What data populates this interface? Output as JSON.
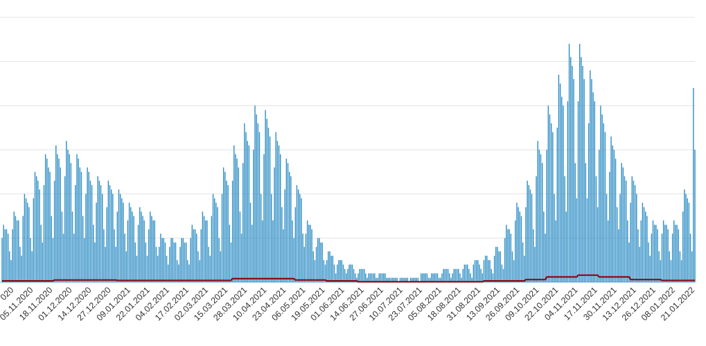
{
  "chart_data": {
    "type": "bar",
    "categories": [
      null,
      null,
      null,
      null,
      null,
      null,
      null,
      null,
      "020",
      null,
      null,
      null,
      null,
      null,
      null,
      null,
      null,
      null,
      null,
      null,
      null,
      "05.11.2020",
      null,
      null,
      null,
      null,
      null,
      null,
      null,
      null,
      null,
      null,
      null,
      null,
      "18.11.2020",
      null,
      null,
      null,
      null,
      null,
      null,
      null,
      null,
      null,
      null,
      null,
      null,
      "01.12.2020",
      null,
      null,
      null,
      null,
      null,
      null,
      null,
      null,
      null,
      null,
      null,
      null,
      "14.12.2020",
      null,
      null,
      null,
      null,
      null,
      null,
      null,
      null,
      null,
      null,
      null,
      null,
      "27.12.2020",
      null,
      null,
      null,
      null,
      null,
      null,
      null,
      null,
      null,
      null,
      null,
      null,
      "09.01.2021",
      null,
      null,
      null,
      null,
      null,
      null,
      null,
      null,
      null,
      null,
      null,
      null,
      "22.01.2021",
      null,
      null,
      null,
      null,
      null,
      null,
      null,
      null,
      null,
      null,
      null,
      null,
      "04.02.2021",
      null,
      null,
      null,
      null,
      null,
      null,
      null,
      null,
      null,
      null,
      null,
      null,
      "17.02.2021",
      null,
      null,
      null,
      null,
      null,
      null,
      null,
      null,
      null,
      null,
      null,
      null,
      "02.03.2021",
      null,
      null,
      null,
      null,
      null,
      null,
      null,
      null,
      null,
      null,
      null,
      null,
      "15.03.2021",
      null,
      null,
      null,
      null,
      null,
      null,
      null,
      null,
      null,
      null,
      null,
      null,
      "28.03.2021",
      null,
      null,
      null,
      null,
      null,
      null,
      null,
      null,
      null,
      null,
      null,
      null,
      "10.04.2021",
      null,
      null,
      null,
      null,
      null,
      null,
      null,
      null,
      null,
      null,
      null,
      null,
      "23.04.2021",
      null,
      null,
      null,
      null,
      null,
      null,
      null,
      null,
      null,
      null,
      null,
      null,
      "06.05.2021",
      null,
      null,
      null,
      null,
      null,
      null,
      null,
      null,
      null,
      null,
      null,
      null,
      "19.05.2021",
      null,
      null,
      null,
      null,
      null,
      null,
      null,
      null,
      null,
      null,
      null,
      null,
      "01.06.2021",
      null,
      null,
      null,
      null,
      null,
      null,
      null,
      null,
      null,
      null,
      null,
      null,
      "14.06.2021",
      null,
      null,
      null,
      null,
      null,
      null,
      null,
      null,
      null,
      null,
      null,
      null,
      "27.06.2021",
      null,
      null,
      null,
      null,
      null,
      null,
      null,
      null,
      null,
      null,
      null,
      null,
      "10.07.2021",
      null,
      null,
      null,
      null,
      null,
      null,
      null,
      null,
      null,
      null,
      null,
      null,
      "23.07.2021",
      null,
      null,
      null,
      null,
      null,
      null,
      null,
      null,
      null,
      null,
      null,
      null,
      "05.08.2021",
      null,
      null,
      null,
      null,
      null,
      null,
      null,
      null,
      null,
      null,
      null,
      null,
      "18.08.2021",
      null,
      null,
      null,
      null,
      null,
      null,
      null,
      null,
      null,
      null,
      null,
      null,
      "31.08.2021",
      null,
      null,
      null,
      null,
      null,
      null,
      null,
      null,
      null,
      null,
      null,
      null,
      "13.09.2021",
      null,
      null,
      null,
      null,
      null,
      null,
      null,
      null,
      null,
      null,
      null,
      null,
      "26.09.2021",
      null,
      null,
      null,
      null,
      null,
      null,
      null,
      null,
      null,
      null,
      null,
      null,
      "09.10.2021",
      null,
      null,
      null,
      null,
      null,
      null,
      null,
      null,
      null,
      null,
      null,
      null,
      "22.10.2021",
      null,
      null,
      null,
      null,
      null,
      null,
      null,
      null,
      null,
      null,
      null,
      null,
      "04.11.2021",
      null,
      null,
      null,
      null,
      null,
      null,
      null,
      null,
      null,
      null,
      null,
      null,
      "17.11.2021",
      null,
      null,
      null,
      null,
      null,
      null,
      null,
      null,
      null,
      null,
      null,
      null,
      "30.11.2021",
      null,
      null,
      null,
      null,
      null,
      null,
      null,
      null,
      null,
      null,
      null,
      null,
      "13.12.2021",
      null,
      null,
      null,
      null,
      null,
      null,
      null,
      null,
      null,
      null,
      null,
      null,
      "26.12.2021",
      null,
      null,
      null,
      null,
      null,
      null,
      null,
      null,
      null,
      null,
      null,
      null,
      "08.01.2022",
      null,
      null,
      null,
      null,
      null,
      null,
      null,
      null,
      null,
      null,
      null,
      null,
      "21.01.2022"
    ],
    "series": [
      {
        "type": "bar",
        "color": "#2b8cc4",
        "values": [
          10,
          13,
          12,
          12,
          11,
          7,
          5,
          12,
          16,
          15,
          14,
          14,
          8,
          6,
          15,
          20,
          19,
          18,
          17,
          10,
          7,
          19,
          25,
          24,
          23,
          21,
          13,
          9,
          22,
          29,
          28,
          26,
          25,
          15,
          10,
          23,
          31,
          29,
          28,
          26,
          16,
          11,
          24,
          32,
          30,
          29,
          27,
          16,
          11,
          22,
          29,
          28,
          26,
          25,
          15,
          10,
          20,
          26,
          25,
          23,
          22,
          13,
          9,
          18,
          24,
          23,
          22,
          20,
          12,
          8,
          17,
          23,
          22,
          21,
          20,
          12,
          8,
          16,
          21,
          20,
          19,
          18,
          11,
          7,
          14,
          18,
          17,
          16,
          15,
          9,
          6,
          13,
          17,
          16,
          15,
          14,
          9,
          6,
          12,
          16,
          15,
          14,
          14,
          8,
          6,
          8,
          11,
          10,
          10,
          9,
          6,
          4,
          8,
          10,
          10,
          9,
          9,
          5,
          4,
          8,
          10,
          10,
          9,
          9,
          5,
          4,
          10,
          13,
          12,
          12,
          11,
          7,
          5,
          12,
          16,
          15,
          14,
          14,
          8,
          6,
          15,
          20,
          19,
          18,
          17,
          10,
          7,
          20,
          26,
          25,
          23,
          22,
          13,
          9,
          23,
          31,
          29,
          28,
          26,
          16,
          11,
          27,
          36,
          34,
          32,
          31,
          18,
          13,
          30,
          40,
          38,
          36,
          34,
          20,
          14,
          29,
          39,
          37,
          35,
          33,
          20,
          14,
          26,
          34,
          32,
          31,
          29,
          17,
          12,
          21,
          28,
          27,
          25,
          24,
          14,
          10,
          17,
          22,
          21,
          20,
          19,
          11,
          8,
          11,
          14,
          13,
          13,
          12,
          7,
          5,
          8,
          10,
          10,
          9,
          9,
          5,
          4,
          5,
          7,
          7,
          6,
          6,
          4,
          2,
          4,
          5,
          5,
          5,
          4,
          3,
          2,
          3,
          4,
          4,
          4,
          3,
          2,
          1,
          2,
          3,
          3,
          3,
          3,
          2,
          1,
          2,
          2,
          2,
          2,
          2,
          1,
          1,
          2,
          2,
          2,
          2,
          2,
          1,
          1,
          1,
          1,
          1,
          1,
          1,
          1,
          0,
          1,
          1,
          1,
          1,
          1,
          1,
          0,
          1,
          1,
          1,
          1,
          1,
          1,
          0,
          2,
          2,
          2,
          2,
          2,
          1,
          1,
          2,
          2,
          2,
          2,
          2,
          1,
          1,
          2,
          3,
          3,
          3,
          3,
          2,
          1,
          2,
          3,
          3,
          3,
          3,
          2,
          1,
          3,
          4,
          4,
          4,
          3,
          2,
          1,
          4,
          5,
          5,
          5,
          4,
          3,
          2,
          5,
          6,
          6,
          5,
          5,
          3,
          2,
          6,
          8,
          8,
          7,
          7,
          4,
          3,
          10,
          13,
          12,
          12,
          11,
          7,
          5,
          14,
          18,
          17,
          16,
          15,
          9,
          6,
          17,
          23,
          22,
          21,
          20,
          12,
          8,
          24,
          32,
          30,
          29,
          27,
          16,
          11,
          30,
          40,
          38,
          36,
          34,
          20,
          14,
          35,
          47,
          45,
          42,
          40,
          24,
          16,
          41,
          54,
          51,
          49,
          46,
          27,
          19,
          41,
          54,
          51,
          49,
          46,
          27,
          19,
          36,
          48,
          46,
          43,
          41,
          24,
          17,
          30,
          40,
          38,
          36,
          34,
          20,
          14,
          25,
          33,
          31,
          30,
          28,
          17,
          12,
          20,
          27,
          26,
          24,
          23,
          14,
          9,
          18,
          24,
          23,
          22,
          20,
          12,
          8,
          14,
          18,
          17,
          16,
          15,
          9,
          6,
          11,
          14,
          13,
          13,
          12,
          7,
          5,
          11,
          14,
          13,
          13,
          12,
          7,
          5,
          11,
          14,
          13,
          13,
          12,
          7,
          5,
          16,
          21,
          20,
          19,
          18,
          11,
          7,
          44,
          30
        ]
      },
      {
        "type": "line",
        "color": "#8b0a14",
        "values": [
          0.3,
          0.3,
          0.3,
          0.3,
          0.3,
          0.3,
          0.3,
          0.3,
          0.3,
          0.3,
          0.3,
          0.3,
          0.3,
          0.3,
          0.3,
          0.3,
          0.3,
          0.3,
          0.3,
          0.3,
          0.3,
          0.3,
          0.3,
          0.3,
          0.3,
          0.3,
          0.3,
          0.3,
          0.3,
          0.3,
          0.3,
          0.3,
          0.3,
          0.3,
          0.3,
          0.5,
          0.5,
          0.5,
          0.5,
          0.5,
          0.5,
          0.5,
          0.5,
          0.5,
          0.5,
          0.5,
          0.5,
          0.5,
          0.5,
          0.5,
          0.5,
          0.5,
          0.5,
          0.5,
          0.5,
          0.5,
          0.5,
          0.5,
          0.5,
          0.5,
          0.5,
          0.5,
          0.5,
          0.5,
          0.5,
          0.5,
          0.5,
          0.5,
          0.5,
          0.5,
          0.5,
          0.5,
          0.5,
          0.5,
          0.5,
          0.5,
          0.5,
          0.4,
          0.4,
          0.4,
          0.4,
          0.4,
          0.4,
          0.4,
          0.4,
          0.4,
          0.4,
          0.4,
          0.4,
          0.4,
          0.4,
          0.4,
          0.4,
          0.4,
          0.4,
          0.4,
          0.4,
          0.4,
          0.4,
          0.4,
          0.4,
          0.4,
          0.4,
          0.4,
          0.4,
          0.4,
          0.4,
          0.4,
          0.4,
          0.4,
          0.4,
          0.4,
          0.4,
          0.4,
          0.4,
          0.4,
          0.4,
          0.4,
          0.4,
          0.4,
          0.4,
          0.4,
          0.4,
          0.4,
          0.4,
          0.4,
          0.4,
          0.4,
          0.4,
          0.4,
          0.4,
          0.4,
          0.4,
          0.4,
          0.4,
          0.4,
          0.4,
          0.4,
          0.4,
          0.4,
          0.4,
          0.4,
          0.4,
          0.4,
          0.4,
          0.4,
          0.4,
          0.4,
          0.4,
          0.4,
          0.4,
          0.4,
          0.4,
          0.4,
          0.8,
          0.8,
          0.8,
          0.8,
          0.8,
          0.8,
          0.8,
          0.8,
          0.8,
          0.8,
          0.8,
          0.8,
          0.8,
          0.8,
          0.8,
          0.8,
          0.8,
          0.8,
          0.8,
          0.8,
          0.8,
          0.8,
          0.8,
          0.8,
          0.8,
          0.8,
          0.8,
          0.8,
          0.8,
          0.8,
          0.8,
          0.8,
          0.8,
          0.8,
          0.8,
          0.8,
          0.8,
          0.8,
          0.8,
          0.8,
          0.8,
          0.8,
          0.5,
          0.5,
          0.5,
          0.5,
          0.5,
          0.5,
          0.5,
          0.5,
          0.5,
          0.5,
          0.5,
          0.5,
          0.5,
          0.5,
          0.5,
          0.5,
          0.5,
          0.5,
          0.5,
          0.5,
          0.5,
          0.3,
          0.3,
          0.3,
          0.3,
          0.3,
          0.3,
          0.3,
          0.3,
          0.3,
          0.3,
          0.3,
          0.3,
          0.3,
          0.3,
          0.3,
          0.3,
          0.3,
          0.3,
          0.3,
          0.3,
          0.3,
          0.1,
          0.1,
          0.1,
          0.1,
          0.1,
          0.1,
          0.1,
          0.1,
          0.1,
          0.1,
          0.1,
          0.1,
          0.1,
          0.1,
          0.1,
          0.1,
          0.1,
          0.1,
          0.1,
          0.1,
          0.1,
          0.1,
          0.1,
          0.1,
          0.1,
          0.1,
          0.1,
          0.1,
          0.1,
          0.1,
          0.1,
          0.1,
          0.1,
          0.1,
          0.1,
          0.1,
          0.1,
          0.1,
          0.1,
          0.1,
          0.1,
          0.1,
          0.1,
          0.1,
          0.1,
          0.1,
          0.1,
          0.1,
          0.1,
          0.1,
          0.1,
          0.1,
          0.1,
          0.1,
          0.1,
          0.1,
          0.1,
          0.1,
          0.1,
          0.1,
          0.1,
          0.1,
          0.1,
          0.1,
          0.1,
          0.1,
          0.1,
          0.1,
          0.1,
          0.1,
          0.1,
          0.1,
          0.1,
          0.1,
          0.1,
          0.1,
          0.1,
          0.1,
          0.1,
          0.1,
          0.1,
          0.1,
          0.1,
          0.1,
          0.3,
          0.3,
          0.3,
          0.3,
          0.3,
          0.3,
          0.3,
          0.3,
          0.3,
          0.3,
          0.3,
          0.3,
          0.3,
          0.3,
          0.3,
          0.3,
          0.3,
          0.3,
          0.3,
          0.3,
          0.3,
          0.3,
          0.3,
          0.3,
          0.3,
          0.3,
          0.3,
          0.3,
          0.6,
          0.6,
          0.6,
          0.6,
          0.6,
          0.6,
          0.6,
          0.6,
          0.6,
          0.6,
          0.6,
          0.6,
          0.6,
          0.6,
          1.2,
          1.2,
          1.2,
          1.2,
          1.2,
          1.2,
          1.2,
          1.2,
          1.2,
          1.2,
          1.2,
          1.2,
          1.2,
          1.2,
          1.2,
          1.2,
          1.2,
          1.2,
          1.2,
          1.2,
          1.2,
          1.6,
          1.6,
          1.6,
          1.6,
          1.6,
          1.6,
          1.6,
          1.6,
          1.6,
          1.6,
          1.6,
          1.6,
          1.6,
          1.6,
          1.2,
          1.2,
          1.2,
          1.2,
          1.2,
          1.2,
          1.2,
          1.2,
          1.2,
          1.2,
          1.2,
          1.2,
          1.2,
          1.2,
          1.2,
          1.2,
          1.2,
          1.2,
          1.2,
          1.2,
          1.2,
          0.6,
          0.6,
          0.6,
          0.6,
          0.6,
          0.6,
          0.6,
          0.6,
          0.6,
          0.6,
          0.6,
          0.6,
          0.6,
          0.6,
          0.6,
          0.6,
          0.6,
          0.6,
          0.6,
          0.6,
          0.6,
          0.4,
          0.4,
          0.4,
          0.4,
          0.4,
          0.4,
          0.4,
          0.4,
          0.4,
          0.4,
          0.4,
          0.4,
          0.4,
          0.4,
          0.4,
          0.4,
          0.4,
          0.4,
          0.4,
          0.4,
          0.4,
          0.4,
          0.4
        ]
      }
    ],
    "ylim": [
      0,
      60
    ],
    "yticks": [
      0,
      10,
      20,
      30,
      40,
      50,
      60
    ],
    "grid": true
  }
}
